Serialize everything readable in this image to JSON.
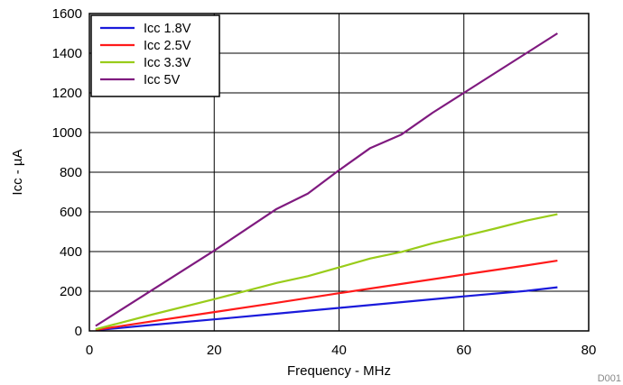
{
  "chart_data": {
    "type": "line",
    "xlabel": "Frequency - MHz",
    "ylabel": "Icc - µA",
    "xlim": [
      0,
      80
    ],
    "ylim": [
      0,
      1600
    ],
    "x_ticks": [
      0,
      20,
      40,
      60,
      80
    ],
    "y_ticks": [
      0,
      200,
      400,
      600,
      800,
      1000,
      1200,
      1400,
      1600
    ],
    "grid": true,
    "legend_position": "top-left",
    "footnote": "D001",
    "series": [
      {
        "name": "Icc 1.8V",
        "color": "#1a1adb",
        "x": [
          1,
          10,
          20,
          30,
          40,
          50,
          60,
          70,
          75
        ],
        "y": [
          3,
          30,
          58,
          87,
          116,
          145,
          174,
          202,
          220
        ]
      },
      {
        "name": "Icc 2.5V",
        "color": "#ff1a1a",
        "x": [
          1,
          10,
          20,
          30,
          40,
          50,
          60,
          70,
          75
        ],
        "y": [
          5,
          48,
          95,
          142,
          190,
          237,
          284,
          330,
          354
        ]
      },
      {
        "name": "Icc 3.3V",
        "color": "#99cc1a",
        "x": [
          1,
          10,
          20,
          30,
          35,
          40,
          45,
          50,
          55,
          60,
          65,
          70,
          75
        ],
        "y": [
          8,
          82,
          160,
          242,
          276,
          320,
          365,
          398,
          442,
          478,
          516,
          556,
          588
        ]
      },
      {
        "name": "Icc 5V",
        "color": "#7f1a7f",
        "x": [
          1,
          10,
          15,
          20,
          25,
          30,
          35,
          40,
          45,
          50,
          55,
          60,
          65,
          70,
          75
        ],
        "y": [
          25,
          205,
          305,
          405,
          510,
          615,
          692,
          810,
          922,
          990,
          1100,
          1200,
          1300,
          1400,
          1500
        ]
      }
    ]
  }
}
